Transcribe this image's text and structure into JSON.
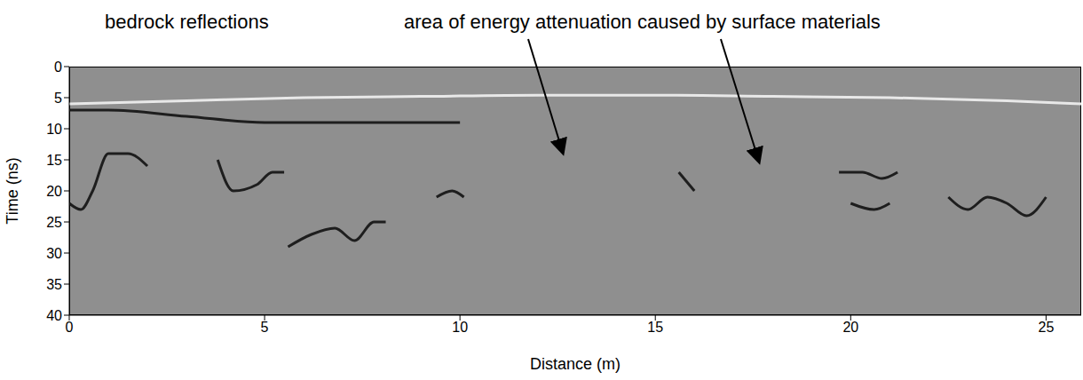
{
  "chart_data": {
    "type": "line",
    "annotations": [
      "bedrock reflections",
      "area of energy attenuation caused by surface materials"
    ],
    "x_label": "Distance (m)",
    "y_label": "Time (ns)",
    "xlim": [
      0,
      25.9
    ],
    "xticks": [
      0,
      5,
      10,
      15,
      20,
      25
    ],
    "ylim": [
      0,
      40
    ],
    "yticks": [
      0,
      5,
      10,
      15,
      20,
      25,
      30,
      35,
      40
    ],
    "grid": false,
    "legend": "none",
    "background": "#8f8f8f",
    "series": [
      {
        "color": "#e8e8e8",
        "x": [
          0,
          3,
          6,
          9,
          12,
          15,
          18,
          21,
          24,
          25.9
        ],
        "values": [
          6,
          5.5,
          5,
          4.8,
          4.6,
          4.6,
          4.8,
          5,
          5.5,
          6
        ]
      },
      {
        "color": "#1e1e1e",
        "x": [
          0,
          1,
          3,
          5,
          7,
          10
        ],
        "values": [
          7,
          7,
          8,
          9,
          9,
          9
        ]
      },
      {
        "color": "#1e1e1e",
        "x": [
          0,
          0.3,
          0.6,
          1,
          1.5,
          2
        ],
        "values": [
          22,
          23,
          20,
          14,
          14,
          16
        ]
      },
      {
        "color": "#1e1e1e",
        "x": [
          3.8,
          4.2,
          4.8,
          5.2,
          5.5
        ],
        "values": [
          15,
          20,
          19,
          17,
          17
        ]
      },
      {
        "color": "#1e1e1e",
        "x": [
          5.6,
          6.2,
          6.8,
          7.3,
          7.8,
          8.1
        ],
        "values": [
          29,
          27,
          26,
          28,
          25,
          25
        ]
      },
      {
        "color": "#1e1e1e",
        "x": [
          9.4,
          9.8,
          10.1
        ],
        "values": [
          21,
          20,
          21
        ]
      },
      {
        "color": "#1e1e1e",
        "x": [
          15.6,
          16
        ],
        "values": [
          17,
          20
        ]
      },
      {
        "color": "#1e1e1e",
        "x": [
          19.7,
          20.3,
          20.8,
          21.2
        ],
        "values": [
          17,
          17,
          18,
          17
        ]
      },
      {
        "color": "#1e1e1e",
        "x": [
          20,
          20.6,
          21
        ],
        "values": [
          22,
          23,
          22
        ]
      },
      {
        "color": "#1e1e1e",
        "x": [
          22.5,
          23,
          23.5,
          24,
          24.5,
          25
        ],
        "values": [
          21,
          23,
          21,
          22,
          24,
          21
        ]
      }
    ]
  }
}
